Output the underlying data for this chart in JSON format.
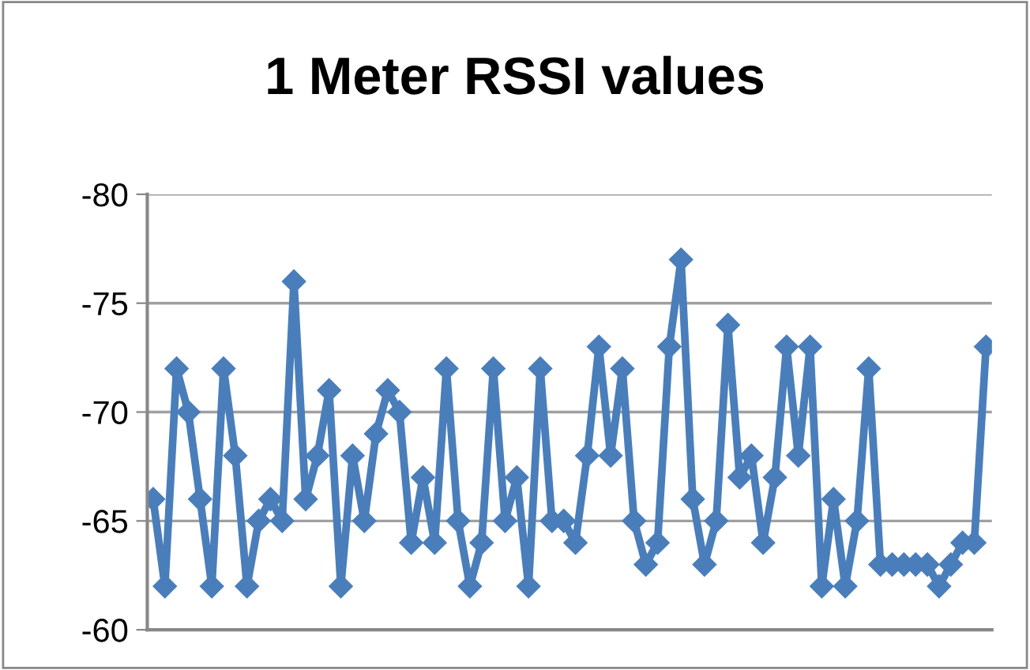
{
  "chart_data": {
    "type": "line",
    "title": "1 Meter RSSI values",
    "categories": [
      null,
      null,
      null,
      null,
      null,
      null,
      null,
      null,
      null,
      null,
      null,
      null,
      null,
      null,
      null,
      null,
      null,
      null,
      null,
      null,
      null,
      null,
      null,
      null,
      null,
      null,
      null,
      null,
      null,
      null,
      null,
      null,
      null,
      null,
      null,
      null,
      null,
      null,
      null,
      null,
      null,
      null,
      null,
      null,
      null,
      null,
      null,
      null,
      null,
      null,
      null,
      null,
      null,
      null,
      null,
      null,
      null,
      null,
      null,
      null,
      null,
      null,
      null,
      null,
      null,
      null,
      null,
      null,
      null,
      null,
      null,
      null
    ],
    "series": [
      {
        "color": "#4a7ebb",
        "values": [
          -66,
          -62,
          -72,
          -70,
          -66,
          -62,
          -72,
          -68,
          -62,
          -65,
          -66,
          -65,
          -76,
          -66,
          -68,
          -71,
          -62,
          -68,
          -65,
          -69,
          -71,
          -70,
          -64,
          -67,
          -64,
          -72,
          -65,
          -62,
          -64,
          -72,
          -65,
          -67,
          -62,
          -72,
          -65,
          -65,
          -64,
          -68,
          -73,
          -68,
          -72,
          -65,
          -63,
          -64,
          -73,
          -77,
          -66,
          -63,
          -65,
          -74,
          -67,
          -68,
          -64,
          -67,
          -73,
          -68,
          -73,
          -62,
          -66,
          -62,
          -65,
          -72,
          -63,
          -63,
          -63,
          -63,
          -63,
          -62,
          -63,
          -64,
          -64,
          -73
        ]
      }
    ],
    "ylim": [
      -60,
      -80
    ],
    "yticks": [
      -80,
      -75,
      -70,
      -65,
      -60
    ],
    "grid": "y",
    "marker": "diamond",
    "line_style": "solid",
    "tick_labels": "y"
  }
}
